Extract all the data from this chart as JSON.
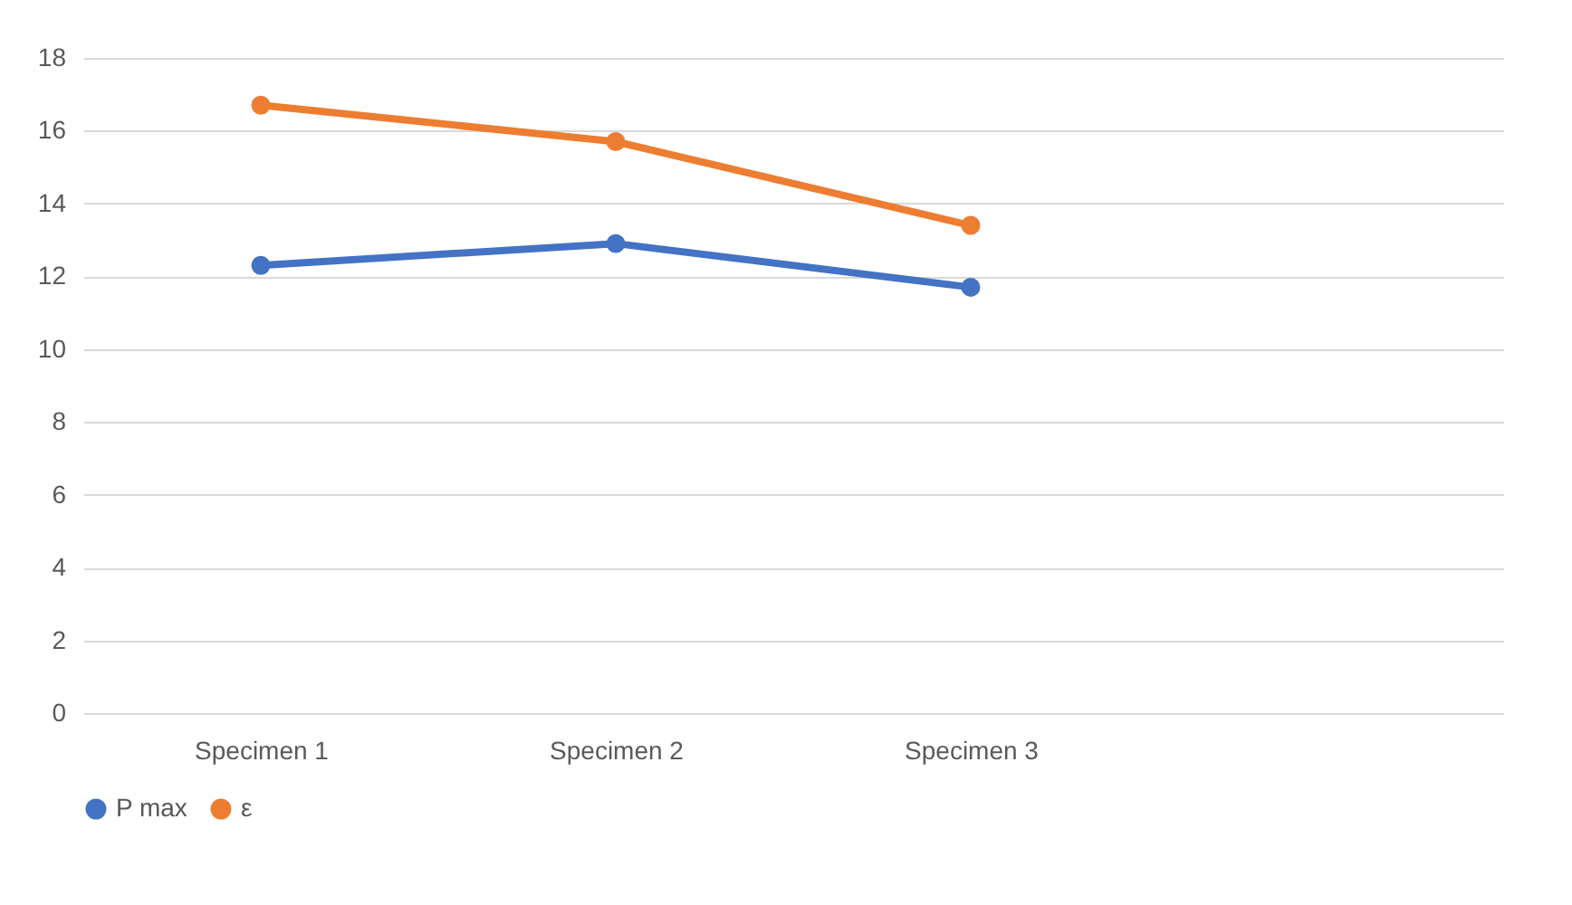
{
  "chart_data": {
    "type": "line",
    "categories": [
      "Specimen 1",
      "Specimen 2",
      "Specimen 3",
      null
    ],
    "series": [
      {
        "name": "P max",
        "color": "#4472c4",
        "values": [
          12.3,
          12.9,
          11.7,
          null
        ]
      },
      {
        "name": "ε",
        "color": "#ed7d31",
        "values": [
          16.7,
          15.7,
          13.4,
          null
        ]
      }
    ],
    "ylim": [
      0,
      18
    ],
    "yticks": [
      0,
      2,
      4,
      6,
      8,
      10,
      12,
      14,
      16,
      18
    ],
    "grid": "y",
    "legend": "bottom",
    "marker": "circle",
    "line_style": "solid"
  }
}
